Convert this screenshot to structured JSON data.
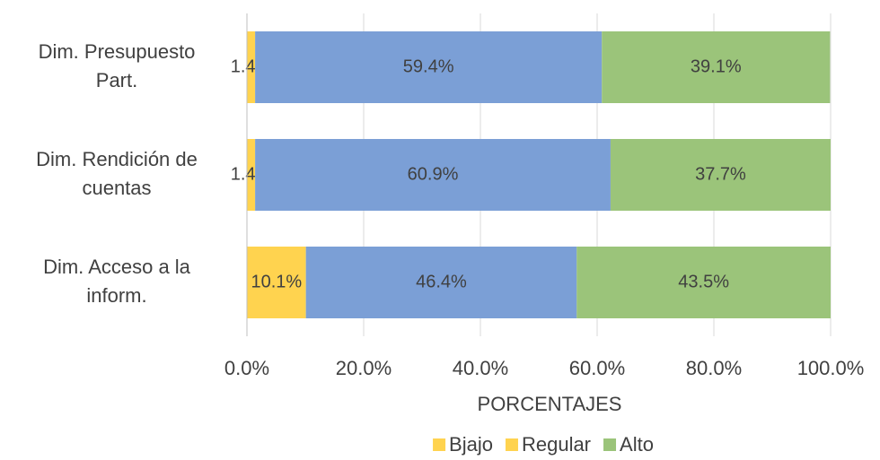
{
  "chart_data": {
    "type": "stacked-bar-horizontal",
    "x_label": "PORCENTAJES",
    "categories": [
      [
        "Dim. Presupuesto",
        "Part."
      ],
      [
        "Dim. Rendición de",
        "cuentas"
      ],
      [
        "Dim. Acceso a la",
        "inform."
      ]
    ],
    "series": [
      {
        "name": "Bjajo",
        "color": "#ffd34f",
        "legend_color": "#ffd34f",
        "values": [
          1.4,
          1.4,
          10.1
        ],
        "value_labels": [
          "1.4%",
          "1.4%",
          "10.1%"
        ]
      },
      {
        "name": "Regular",
        "color": "#7b9fd6",
        "legend_color": "#ffd34f",
        "values": [
          59.4,
          60.9,
          46.4
        ],
        "value_labels": [
          "59.4%",
          "60.9%",
          "46.4%"
        ]
      },
      {
        "name": "Alto",
        "color": "#9bc47a",
        "legend_color": "#9bc47a",
        "values": [
          39.1,
          37.7,
          43.5
        ],
        "value_labels": [
          "39.1%",
          "37.7%",
          "43.5%"
        ]
      }
    ],
    "xlim": [
      0,
      100
    ],
    "xticks": [
      {
        "value": 0,
        "label": "0.0%"
      },
      {
        "value": 20,
        "label": "20.0%"
      },
      {
        "value": 40,
        "label": "40.0%"
      },
      {
        "value": 60,
        "label": "60.0%"
      },
      {
        "value": 80,
        "label": "80.0%"
      },
      {
        "value": 100,
        "label": "100.0%"
      }
    ],
    "grid": true,
    "legend": "bottom"
  }
}
